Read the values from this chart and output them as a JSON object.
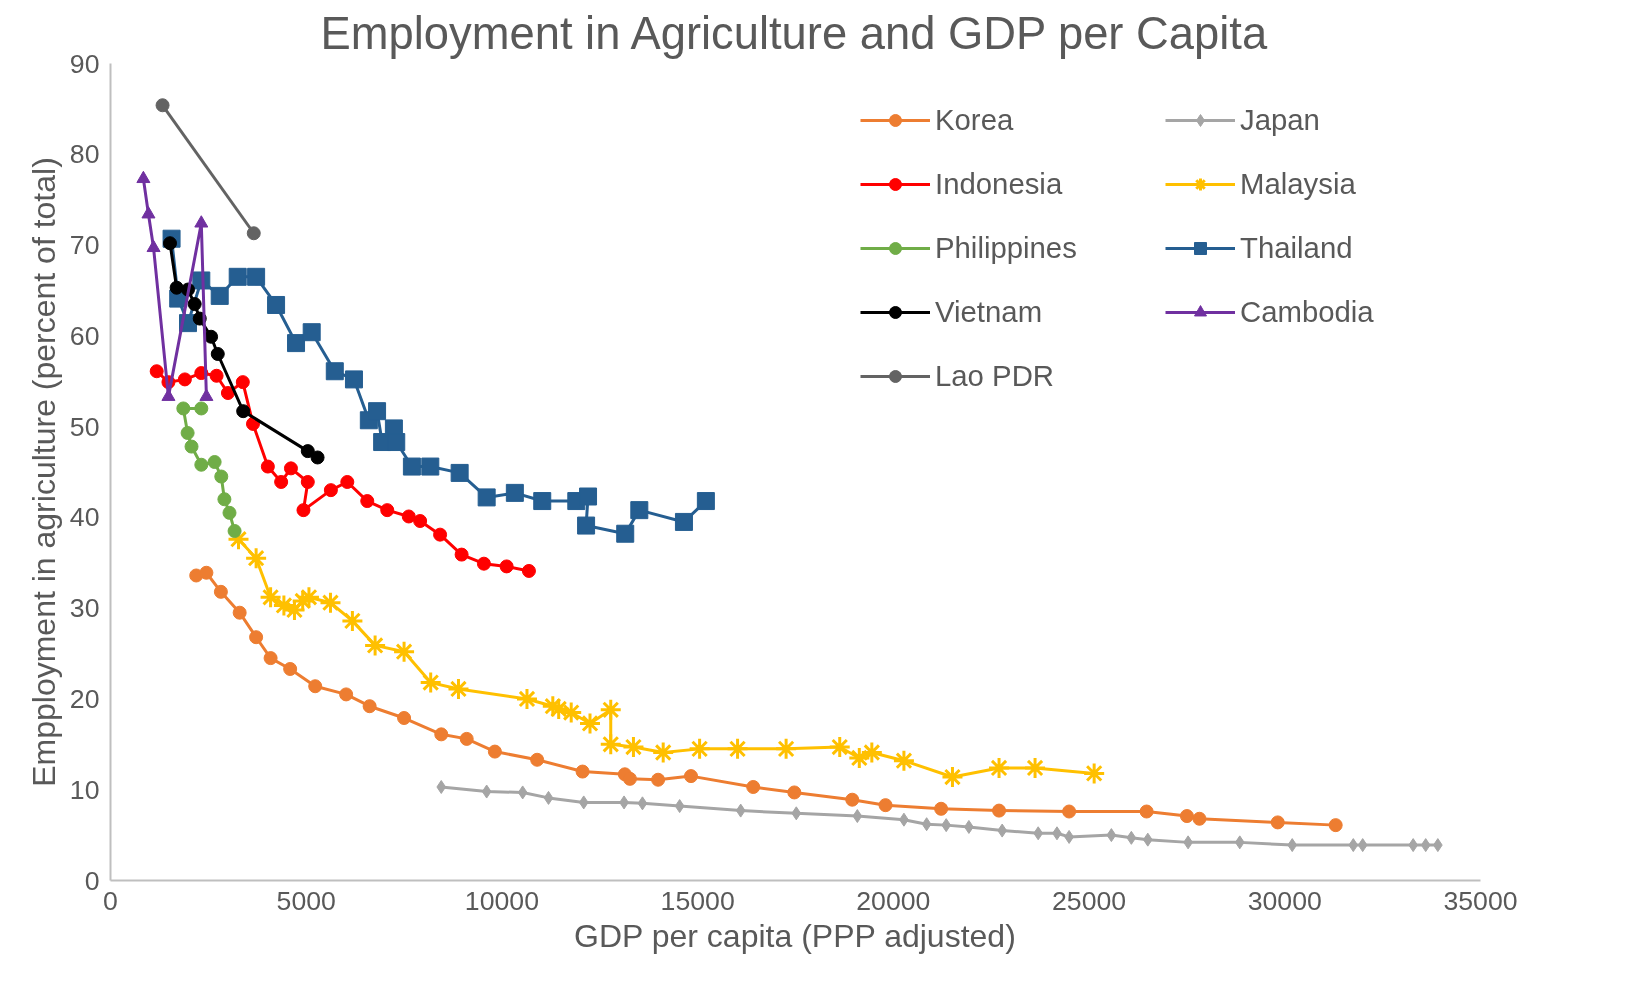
{
  "chart_data": {
    "type": "line",
    "title": "Employment in Agriculture and GDP per Capita",
    "xlabel": "GDP per capita (PPP adjusted)",
    "ylabel": "Empployment in agriculture (percent of total)",
    "xlim": [
      0,
      35000
    ],
    "xticks": [
      0,
      5000,
      10000,
      15000,
      20000,
      25000,
      30000,
      35000
    ],
    "ylim": [
      0,
      90
    ],
    "yticks": [
      0,
      10,
      20,
      30,
      40,
      50,
      60,
      70,
      80,
      90
    ],
    "grid": false,
    "legend": "top right",
    "line_style": "solid",
    "series": [
      {
        "name": "Korea",
        "color": "#ed7d31",
        "marker": "circle",
        "x": [
          2190,
          2450,
          2820,
          3300,
          3720,
          4090,
          4590,
          5230,
          6020,
          6620,
          7500,
          8450,
          9100,
          9820,
          10900,
          12060,
          13140,
          13270,
          13990,
          14830,
          16420,
          17470,
          18950,
          19800,
          21220,
          22700,
          24490,
          26470,
          27500,
          27820,
          29820,
          31300
        ],
        "values": [
          33.6,
          33.9,
          31.8,
          29.5,
          26.8,
          24.5,
          23.3,
          21.4,
          20.5,
          19.2,
          17.9,
          16.1,
          15.6,
          14.2,
          13.3,
          12.0,
          11.7,
          11.2,
          11.1,
          11.5,
          10.3,
          9.7,
          8.9,
          8.3,
          7.9,
          7.7,
          7.6,
          7.6,
          7.1,
          6.8,
          6.4,
          6.1
        ]
      },
      {
        "name": "Japan",
        "color": "#a5a5a5",
        "marker": "diamond",
        "x": [
          8450,
          9610,
          10530,
          11190,
          12090,
          13120,
          13590,
          14540,
          16100,
          17520,
          19080,
          20270,
          20850,
          21350,
          21930,
          22780,
          23700,
          24180,
          24490,
          25570,
          26080,
          26500,
          27530,
          28850,
          30190,
          31750,
          31990,
          33280,
          33600,
          33910
        ],
        "values": [
          10.3,
          9.8,
          9.7,
          9.1,
          8.6,
          8.6,
          8.5,
          8.2,
          7.7,
          7.4,
          7.1,
          6.7,
          6.2,
          6.1,
          5.9,
          5.5,
          5.2,
          5.2,
          4.8,
          5.0,
          4.7,
          4.5,
          4.2,
          4.2,
          3.9,
          3.9,
          3.9,
          3.9,
          3.9,
          3.9
        ]
      },
      {
        "name": "Indonesia",
        "color": "#ff0000",
        "marker": "circle",
        "x": [
          1180,
          1480,
          1900,
          2320,
          2710,
          3000,
          3380,
          3640,
          4020,
          4360,
          4610,
          5040,
          4930,
          5630,
          6050,
          6560,
          7070,
          7620,
          7910,
          8420,
          8970,
          9540,
          10120,
          10690
        ],
        "values": [
          56.1,
          54.9,
          55.2,
          55.9,
          55.6,
          53.7,
          54.9,
          50.3,
          45.6,
          43.9,
          45.4,
          43.9,
          40.8,
          43.0,
          43.9,
          41.8,
          40.8,
          40.1,
          39.6,
          38.1,
          35.9,
          34.9,
          34.6,
          34.1
        ]
      },
      {
        "name": "Malaysia",
        "color": "#ffc000",
        "marker": "cross",
        "x": [
          3270,
          3720,
          4090,
          4430,
          4700,
          4910,
          5070,
          5620,
          6180,
          6760,
          7500,
          8180,
          8890,
          10640,
          11300,
          11450,
          11770,
          12250,
          12780,
          12780,
          13360,
          14120,
          15050,
          16020,
          17260,
          18630,
          19130,
          19450,
          20270,
          21510,
          22700,
          23620,
          25130
        ],
        "values": [
          37.6,
          35.5,
          31.2,
          30.3,
          29.8,
          30.8,
          31.2,
          30.6,
          28.6,
          25.9,
          25.2,
          21.8,
          21.1,
          20.0,
          19.2,
          18.9,
          18.5,
          17.3,
          18.8,
          15.0,
          14.7,
          14.1,
          14.5,
          14.5,
          14.5,
          14.7,
          13.5,
          14.1,
          13.2,
          11.4,
          12.4,
          12.4,
          11.8
        ]
      },
      {
        "name": "Philippines",
        "color": "#70ad47",
        "marker": "circle",
        "x": [
          2320,
          1860,
          1970,
          2070,
          2320,
          2660,
          2830,
          2910,
          3040,
          3170
        ],
        "values": [
          52.0,
          52.0,
          49.3,
          47.8,
          45.8,
          46.1,
          44.5,
          42.0,
          40.5,
          38.5
        ]
      },
      {
        "name": "Thailand",
        "color": "#255e91",
        "marker": "square",
        "x": [
          1560,
          1730,
          1980,
          2320,
          2790,
          3250,
          3720,
          4230,
          4740,
          5140,
          5730,
          6220,
          6600,
          6810,
          6940,
          7240,
          7300,
          7700,
          8170,
          8920,
          9610,
          10330,
          11030,
          11900,
          12200,
          12150,
          13150,
          13510,
          14650,
          15210
        ],
        "values": [
          70.7,
          64.1,
          61.4,
          66.1,
          64.4,
          66.5,
          66.5,
          63.4,
          59.2,
          60.4,
          56.1,
          55.2,
          50.7,
          51.7,
          48.3,
          49.8,
          48.3,
          45.6,
          45.6,
          44.9,
          42.2,
          42.7,
          41.8,
          41.8,
          42.3,
          39.1,
          38.2,
          40.8,
          39.5,
          41.8
        ]
      },
      {
        "name": "Vietnam",
        "color": "#000000",
        "marker": "circle",
        "x": [
          1520,
          1690,
          1980,
          2150,
          2280,
          2570,
          2740,
          3390,
          5040,
          5290
        ],
        "values": [
          70.2,
          65.3,
          65.1,
          63.5,
          61.9,
          59.9,
          58.0,
          51.7,
          47.3,
          46.6
        ]
      },
      {
        "name": "Cambodia",
        "color": "#7030a0",
        "marker": "triangle",
        "x": [
          840,
          970,
          1100,
          1480,
          2320,
          2450
        ],
        "values": [
          77.3,
          73.4,
          69.7,
          53.3,
          72.4,
          53.3
        ]
      },
      {
        "name": "Lao PDR",
        "color": "#636363",
        "marker": "circle",
        "x": [
          1330,
          3660
        ],
        "values": [
          85.4,
          71.3
        ]
      }
    ]
  }
}
